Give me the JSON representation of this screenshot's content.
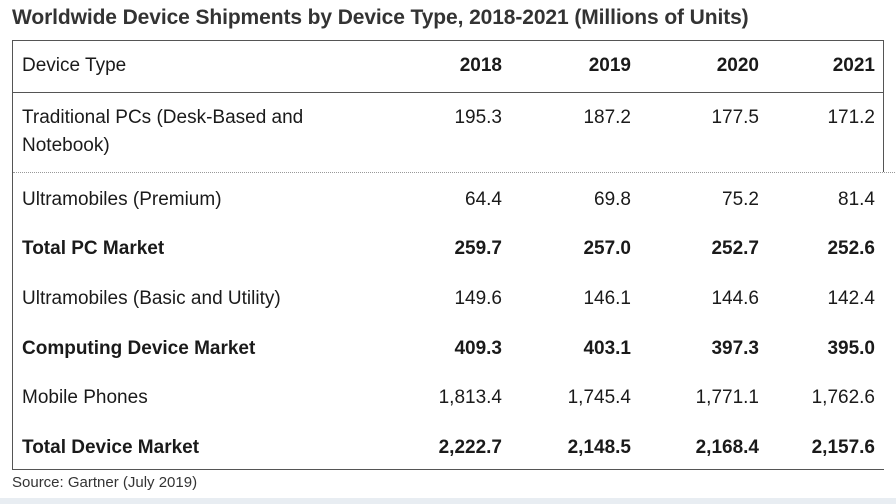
{
  "chart_data": {
    "type": "table",
    "title": "Worldwide Device Shipments by Device Type, 2018-2021 (Millions of Units)",
    "columns": [
      "Device Type",
      "2018",
      "2019",
      "2020",
      "2021"
    ],
    "rows": [
      {
        "label": "Traditional PCs (Desk-Based and Notebook)",
        "values": [
          "195.3",
          "187.2",
          "177.5",
          "171.2"
        ],
        "bold": false
      },
      {
        "label": "Ultramobiles (Premium)",
        "values": [
          "64.4",
          "69.8",
          "75.2",
          "81.4"
        ],
        "bold": false
      },
      {
        "label": "Total PC Market",
        "values": [
          "259.7",
          "257.0",
          "252.7",
          "252.6"
        ],
        "bold": true
      },
      {
        "label": "Ultramobiles (Basic and Utility)",
        "values": [
          "149.6",
          "146.1",
          "144.6",
          "142.4"
        ],
        "bold": false
      },
      {
        "label": "Computing Device Market",
        "values": [
          "409.3",
          "403.1",
          "397.3",
          "395.0"
        ],
        "bold": true
      },
      {
        "label": "Mobile Phones",
        "values": [
          "1,813.4",
          "1,745.4",
          "1,771.1",
          "1,762.6"
        ],
        "bold": false
      },
      {
        "label": "Total Device Market",
        "values": [
          "2,222.7",
          "2,148.5",
          "2,168.4",
          "2,157.6"
        ],
        "bold": true
      }
    ],
    "source": "Source: Gartner (July 2019)"
  }
}
